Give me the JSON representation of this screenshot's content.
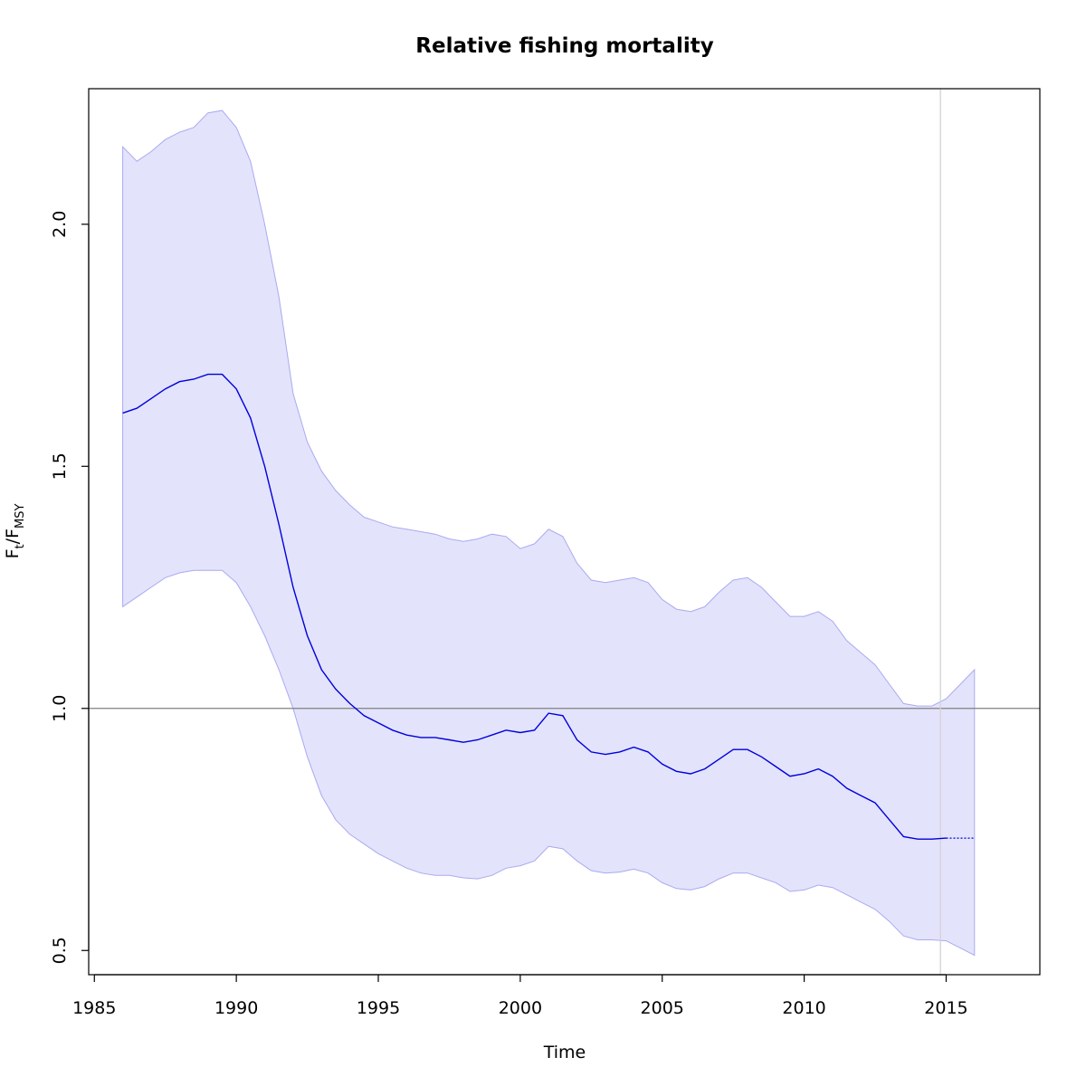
{
  "chart_data": {
    "type": "line",
    "title": "Relative fishing mortality",
    "xlabel": "Time",
    "ylabel": {
      "main": "F",
      "sub1": "t",
      "sep": "/F",
      "sub2": "MSY"
    },
    "xlim": [
      1984.8,
      2018.3
    ],
    "ylim": [
      0.45,
      2.28
    ],
    "x_ticks": [
      1985,
      1990,
      1995,
      2000,
      2005,
      2010,
      2015
    ],
    "x_tick_labels": [
      "1985",
      "1990",
      "1995",
      "2000",
      "2005",
      "2010",
      "2015"
    ],
    "y_ticks": [
      0.5,
      1.0,
      1.5,
      2.0
    ],
    "y_tick_labels": [
      "0.5",
      "1.0",
      "1.5",
      "2.0"
    ],
    "reference_line_y": 1.0,
    "vertical_line_x": 2014.8,
    "grid": false,
    "colors": {
      "line": "#0000dd",
      "band_fill": "#e3e3fc",
      "band_edge": "#aaaaf0",
      "ref_line": "#808080",
      "vline": "#d3d3d3"
    },
    "series": [
      {
        "role": "estimate",
        "x": [
          1986,
          1986.5,
          1987,
          1987.5,
          1988,
          1988.5,
          1989,
          1989.5,
          1990,
          1990.5,
          1991,
          1991.5,
          1992,
          1992.5,
          1993,
          1993.5,
          1994,
          1994.5,
          1995,
          1995.5,
          1996,
          1996.5,
          1997,
          1997.5,
          1998,
          1998.5,
          1999,
          1999.5,
          2000,
          2000.5,
          2001,
          2001.5,
          2002,
          2002.5,
          2003,
          2003.5,
          2004,
          2004.5,
          2005,
          2005.5,
          2006,
          2006.5,
          2007,
          2007.5,
          2008,
          2008.5,
          2009,
          2009.5,
          2010,
          2010.5,
          2011,
          2011.5,
          2012,
          2012.5,
          2013,
          2013.5,
          2014,
          2014.5,
          2015
        ],
        "y": [
          1.61,
          1.62,
          1.64,
          1.66,
          1.675,
          1.68,
          1.69,
          1.69,
          1.66,
          1.6,
          1.5,
          1.38,
          1.25,
          1.15,
          1.08,
          1.04,
          1.01,
          0.985,
          0.97,
          0.955,
          0.945,
          0.94,
          0.94,
          0.935,
          0.93,
          0.935,
          0.945,
          0.955,
          0.95,
          0.955,
          0.99,
          0.985,
          0.935,
          0.91,
          0.905,
          0.91,
          0.92,
          0.91,
          0.885,
          0.87,
          0.865,
          0.875,
          0.895,
          0.915,
          0.915,
          0.9,
          0.88,
          0.86,
          0.865,
          0.875,
          0.86,
          0.835,
          0.82,
          0.805,
          0.77,
          0.735,
          0.73,
          0.73,
          0.732
        ]
      },
      {
        "role": "projection",
        "x": [
          2015,
          2016
        ],
        "y": [
          0.732,
          0.732
        ]
      }
    ],
    "band": {
      "x": [
        1986,
        1986.5,
        1987,
        1987.5,
        1988,
        1988.5,
        1989,
        1989.5,
        1990,
        1990.5,
        1991,
        1991.5,
        1992,
        1992.5,
        1993,
        1993.5,
        1994,
        1994.5,
        1995,
        1995.5,
        1996,
        1996.5,
        1997,
        1997.5,
        1998,
        1998.5,
        1999,
        1999.5,
        2000,
        2000.5,
        2001,
        2001.5,
        2002,
        2002.5,
        2003,
        2003.5,
        2004,
        2004.5,
        2005,
        2005.5,
        2006,
        2006.5,
        2007,
        2007.5,
        2008,
        2008.5,
        2009,
        2009.5,
        2010,
        2010.5,
        2011,
        2011.5,
        2012,
        2012.5,
        2013,
        2013.5,
        2014,
        2014.5,
        2015,
        2015.5,
        2016
      ],
      "upper": [
        2.16,
        2.13,
        2.15,
        2.175,
        2.19,
        2.2,
        2.23,
        2.235,
        2.2,
        2.13,
        2.0,
        1.85,
        1.65,
        1.55,
        1.49,
        1.45,
        1.42,
        1.395,
        1.385,
        1.375,
        1.37,
        1.365,
        1.36,
        1.35,
        1.345,
        1.35,
        1.36,
        1.355,
        1.33,
        1.34,
        1.37,
        1.355,
        1.3,
        1.265,
        1.26,
        1.265,
        1.27,
        1.26,
        1.225,
        1.205,
        1.2,
        1.21,
        1.24,
        1.265,
        1.27,
        1.25,
        1.22,
        1.19,
        1.19,
        1.2,
        1.18,
        1.14,
        1.115,
        1.09,
        1.05,
        1.01,
        1.005,
        1.005,
        1.02,
        1.05,
        1.08
      ],
      "lower": [
        1.21,
        1.23,
        1.25,
        1.27,
        1.28,
        1.285,
        1.285,
        1.285,
        1.26,
        1.21,
        1.15,
        1.08,
        1.0,
        0.9,
        0.82,
        0.77,
        0.74,
        0.72,
        0.7,
        0.685,
        0.67,
        0.66,
        0.655,
        0.655,
        0.65,
        0.648,
        0.655,
        0.67,
        0.675,
        0.685,
        0.715,
        0.71,
        0.685,
        0.665,
        0.66,
        0.662,
        0.668,
        0.66,
        0.64,
        0.628,
        0.625,
        0.632,
        0.648,
        0.66,
        0.66,
        0.65,
        0.64,
        0.622,
        0.625,
        0.635,
        0.63,
        0.615,
        0.6,
        0.585,
        0.56,
        0.53,
        0.522,
        0.522,
        0.52,
        0.505,
        0.49
      ]
    }
  }
}
